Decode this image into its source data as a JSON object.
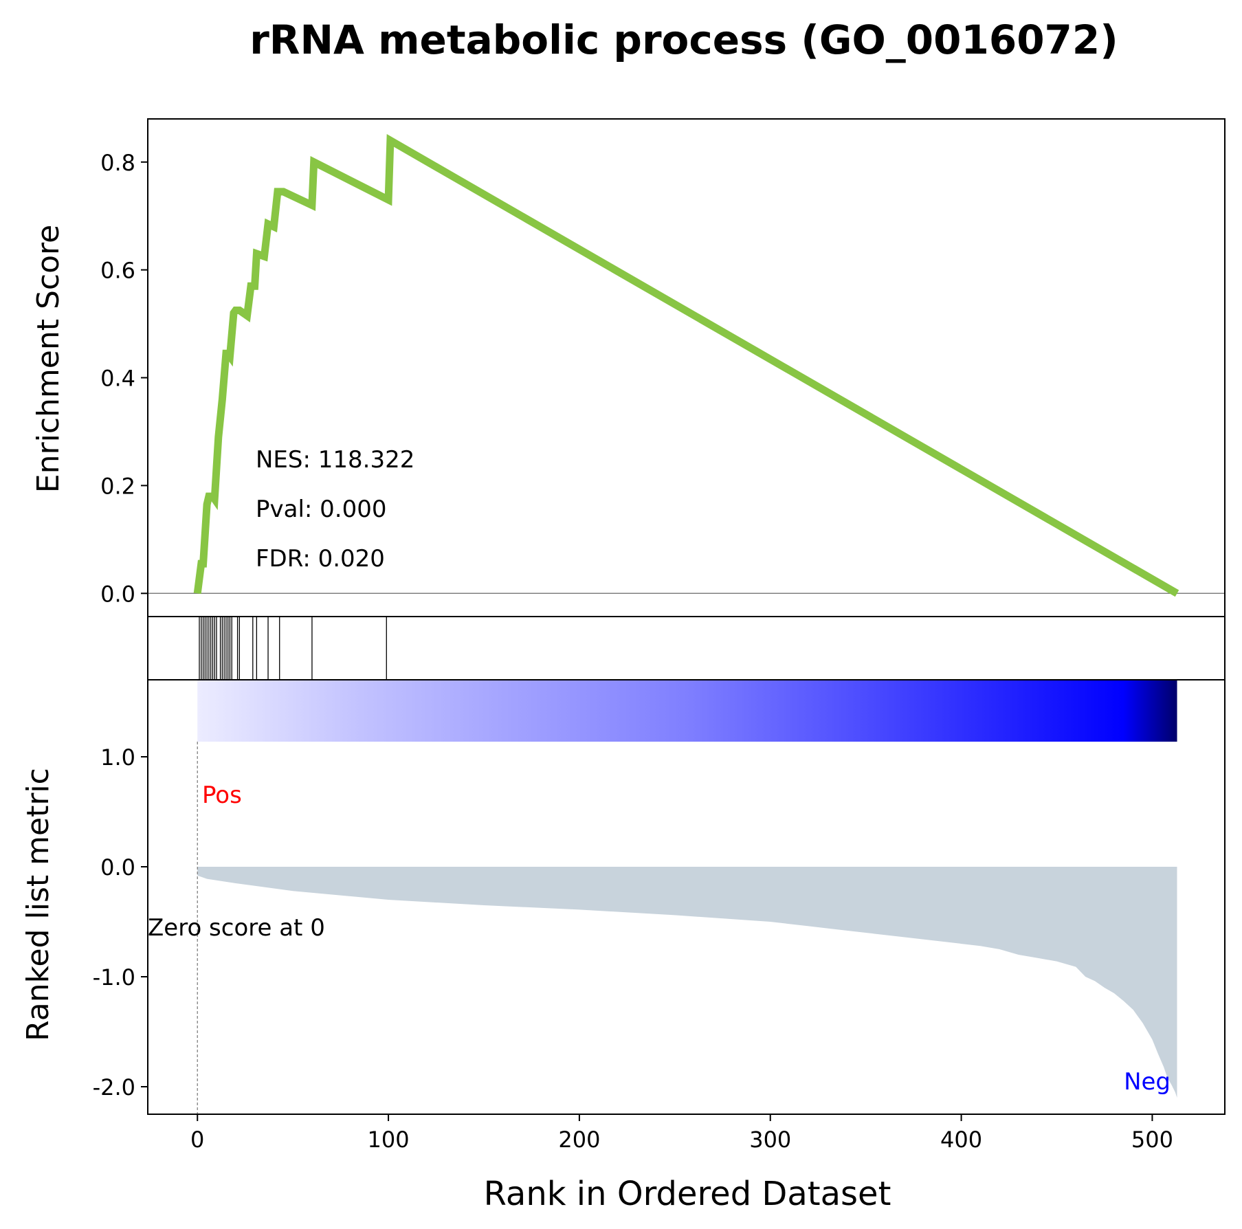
{
  "chart_data": {
    "type": "line",
    "title": "rRNA metabolic process (GO_0016072)",
    "xlabel": "Rank in Ordered Dataset",
    "xlim": [
      -26,
      538
    ],
    "xticks": [
      0,
      100,
      200,
      300,
      400,
      500
    ],
    "xtick_labels": [
      "0",
      "100",
      "200",
      "300",
      "400",
      "500"
    ],
    "total_genes": 514,
    "enrichment_panel": {
      "ylabel": "Enrichment Score",
      "ylim": [
        -0.043,
        0.88
      ],
      "yticks": [
        0.0,
        0.2,
        0.4,
        0.6,
        0.8
      ],
      "ytick_labels": [
        "0.0",
        "0.2",
        "0.4",
        "0.6",
        "0.8"
      ],
      "line_color": "#88c544",
      "zero_line": true,
      "series": [
        {
          "x": [
            0,
            2,
            3,
            5,
            6,
            8,
            9,
            11,
            13,
            15,
            16,
            17,
            19,
            20,
            22,
            26,
            28,
            30,
            31,
            35,
            37,
            40,
            42,
            45,
            60,
            61,
            100,
            101,
            513
          ],
          "values": [
            0.0,
            0.055,
            0.055,
            0.165,
            0.18,
            0.18,
            0.175,
            0.29,
            0.36,
            0.445,
            0.445,
            0.44,
            0.52,
            0.525,
            0.525,
            0.515,
            0.57,
            0.57,
            0.63,
            0.625,
            0.685,
            0.68,
            0.745,
            0.745,
            0.72,
            0.8,
            0.73,
            0.84,
            0.0
          ]
        }
      ],
      "annotations": [
        "NES: 118.322",
        "Pval: 0.000",
        "FDR: 0.020"
      ]
    },
    "hits_panel": {
      "hit_ranks": [
        1,
        2,
        3,
        4,
        5,
        6,
        7,
        8,
        9,
        10,
        12,
        13,
        14,
        15,
        16,
        17,
        18,
        21,
        22,
        29,
        31,
        37,
        43,
        60,
        99
      ]
    },
    "ranked_metric_panel": {
      "ylabel": "Ranked list metric",
      "ylim": [
        -2.25,
        1.7
      ],
      "yticks": [
        1.0,
        0.0,
        -1.0,
        -2.0
      ],
      "ytick_labels": [
        "1.0",
        "0.0",
        "-1.0",
        "-2.0"
      ],
      "fill_color": "#c8d3dc",
      "curve": {
        "x": [
          0,
          5,
          20,
          50,
          100,
          150,
          200,
          250,
          300,
          320,
          335,
          350,
          370,
          390,
          410,
          420,
          430,
          440,
          450,
          460,
          465,
          470,
          475,
          480,
          485,
          490,
          495,
          500,
          503,
          506,
          508,
          510,
          512,
          513
        ],
        "values": [
          -0.08,
          -0.11,
          -0.15,
          -0.22,
          -0.3,
          -0.35,
          -0.39,
          -0.44,
          -0.5,
          -0.54,
          -0.57,
          -0.6,
          -0.64,
          -0.68,
          -0.72,
          -0.75,
          -0.8,
          -0.83,
          -0.86,
          -0.91,
          -1.0,
          -1.04,
          -1.1,
          -1.15,
          -1.22,
          -1.3,
          -1.42,
          -1.57,
          -1.7,
          -1.82,
          -1.92,
          -1.98,
          -2.05,
          -2.1
        ]
      },
      "zero_score_label": "Zero score at 0",
      "zero_score_rank": 0,
      "pos_label": "Pos",
      "pos_color": "#ff0000",
      "neg_label": "Neg",
      "neg_color": "#0000ff",
      "colorbar_stops": [
        "#ececff",
        "#c2c2ff",
        "#a0a0ff",
        "#7f7fff",
        "#5050ff",
        "#0000ff",
        "#00006a"
      ]
    }
  }
}
